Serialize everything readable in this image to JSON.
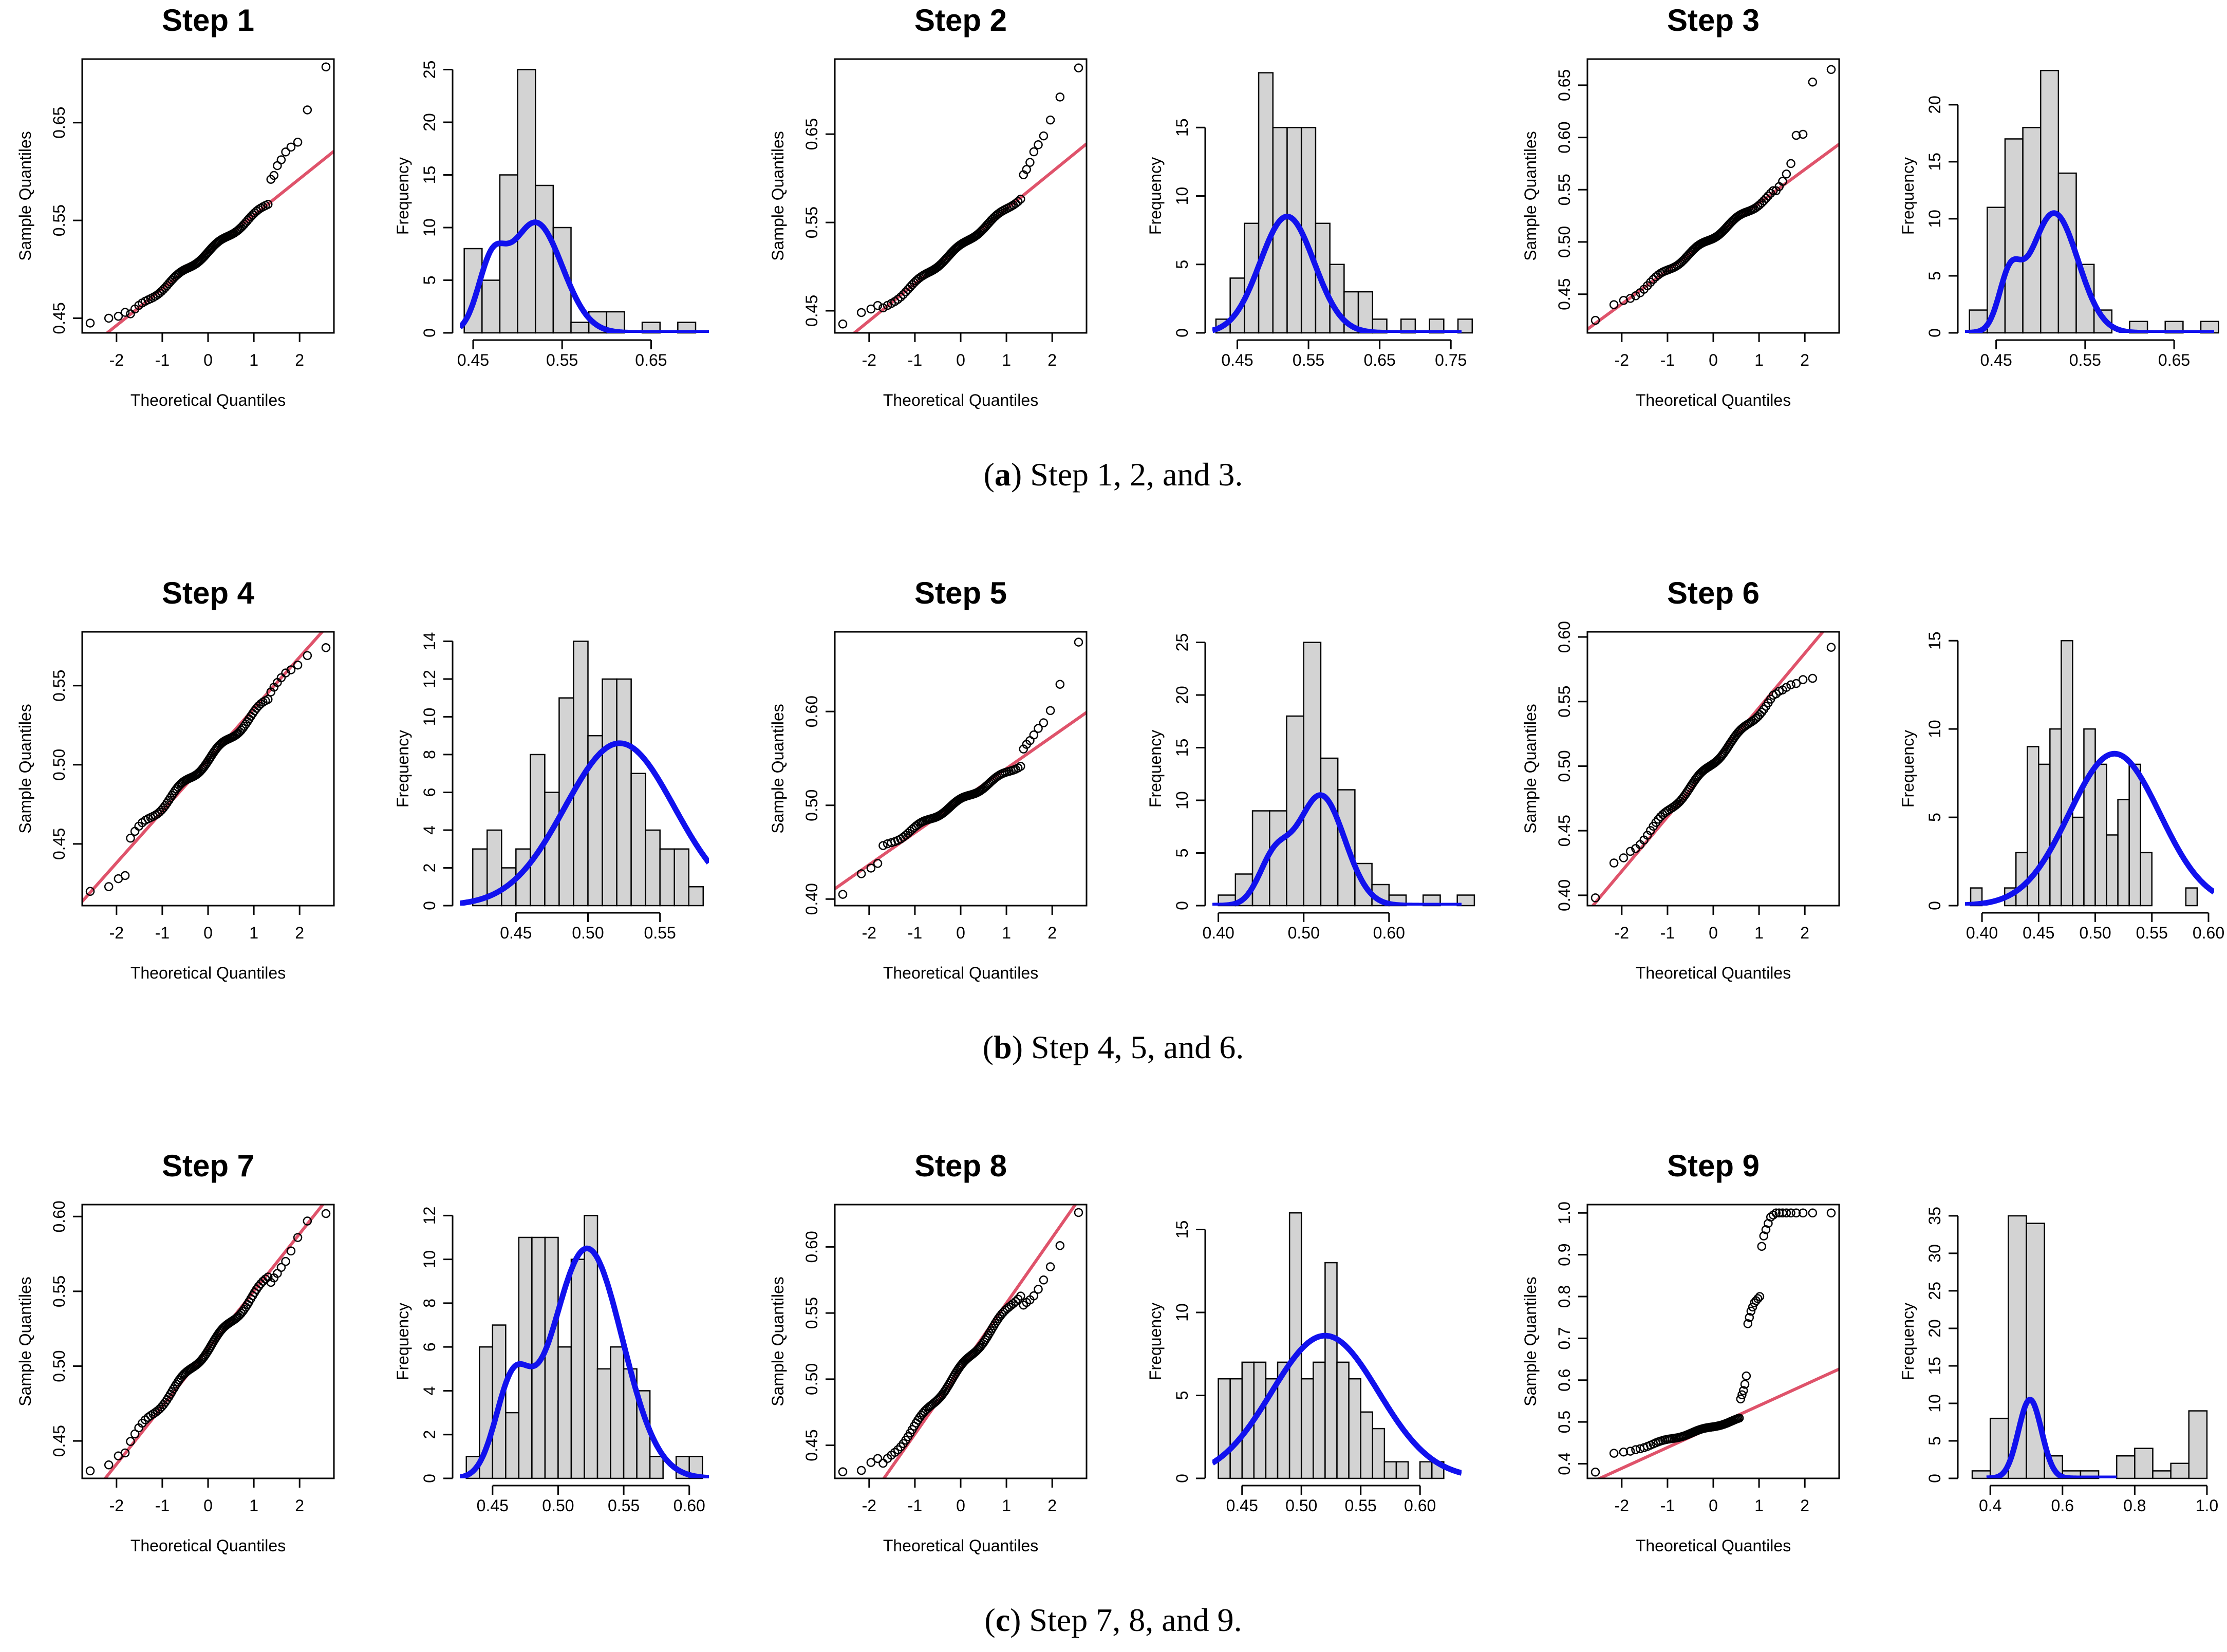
{
  "figure": {
    "captions": [
      {
        "letter": "a",
        "text": " Step 1, 2, and 3."
      },
      {
        "letter": "b",
        "text": " Step 4, 5, and 6."
      },
      {
        "letter": "c",
        "text": " Step 7, 8, and 9."
      }
    ]
  },
  "colors": {
    "ref_line": "#DF536B",
    "density": "#1111EE",
    "bar_fill": "#D3D3D3",
    "axis": "#000000"
  },
  "chart_data": [
    {
      "type": "qq",
      "title": "Step 1",
      "xlabel": "Theoretical Quantiles",
      "ylabel": "Sample Quantiles",
      "xlim": [
        -2.75,
        2.75
      ],
      "ylim": [
        0.435,
        0.715
      ],
      "xticks": [
        -2,
        -1,
        0,
        1,
        2
      ],
      "yticks": [
        0.45,
        0.55,
        0.65
      ],
      "ytick_labels": [
        "0.45",
        "0.55",
        "0.65"
      ],
      "n": 100,
      "line": [
        0.5176,
        0.0375
      ],
      "body_slope": 0.0375,
      "tail_low": [
        0.445,
        0.45,
        0.452,
        0.456
      ],
      "tail_high": [
        0.707,
        0.663,
        0.63,
        0.625,
        0.62,
        0.612,
        0.606,
        0.596,
        0.592
      ]
    },
    {
      "type": "histogram",
      "xlabel": "",
      "ylabel": "Frequency",
      "bin_start": 0.44,
      "bin_width": 0.02,
      "counts": [
        8,
        5,
        15,
        25,
        14,
        10,
        1,
        2,
        2,
        0,
        1,
        0,
        1
      ],
      "xlim": [
        0.435,
        0.715
      ],
      "ylim": [
        0,
        26
      ],
      "xticks": [
        0.45,
        0.55,
        0.65
      ],
      "xtick_labels": [
        "0.45",
        "0.55",
        "0.65"
      ],
      "yticks": [
        0,
        5,
        10,
        15,
        20,
        25
      ],
      "density": {
        "comp": [
          [
            0.8,
            0.52,
            0.03
          ],
          [
            0.2,
            0.47,
            0.015
          ]
        ],
        "peak": 10.5,
        "range": [
          0.435,
          0.715
        ]
      }
    },
    {
      "type": "qq",
      "title": "Step 2",
      "xlabel": "Theoretical Quantiles",
      "ylabel": "Sample Quantiles",
      "xlim": [
        -2.75,
        2.75
      ],
      "ylim": [
        0.425,
        0.735
      ],
      "xticks": [
        -2,
        -1,
        0,
        1,
        2
      ],
      "yticks": [
        0.45,
        0.55,
        0.65
      ],
      "ytick_labels": [
        "0.45",
        "0.55",
        "0.65"
      ],
      "n": 100,
      "line": [
        0.523,
        0.0422
      ],
      "body_slope": 0.0422,
      "tail_low": [
        0.435,
        0.448,
        0.452,
        0.456
      ],
      "tail_high": [
        0.725,
        0.692,
        0.666,
        0.648,
        0.638,
        0.63,
        0.618,
        0.61,
        0.604
      ]
    },
    {
      "type": "histogram",
      "xlabel": "",
      "ylabel": "Frequency",
      "bin_start": 0.42,
      "bin_width": 0.02,
      "counts": [
        1,
        4,
        8,
        19,
        15,
        15,
        15,
        8,
        5,
        3,
        3,
        1,
        0,
        1,
        0,
        1,
        0,
        1
      ],
      "xlim": [
        0.415,
        0.765
      ],
      "ylim": [
        0,
        20
      ],
      "xticks": [
        0.45,
        0.55,
        0.65,
        0.75
      ],
      "xtick_labels": [
        "0.45",
        "0.55",
        "0.65",
        "0.75"
      ],
      "yticks": [
        0,
        5,
        10,
        15
      ],
      "density": {
        "comp": [
          [
            1,
            0.52,
            0.038
          ]
        ],
        "peak": 8.5,
        "range": [
          0.415,
          0.765
        ]
      }
    },
    {
      "type": "qq",
      "title": "Step 3",
      "xlabel": "Theoretical Quantiles",
      "ylabel": "Sample Quantiles",
      "xlim": [
        -2.75,
        2.75
      ],
      "ylim": [
        0.413,
        0.675
      ],
      "xticks": [
        -2,
        -1,
        0,
        1,
        2
      ],
      "yticks": [
        0.45,
        0.5,
        0.55,
        0.6,
        0.65
      ],
      "ytick_labels": [
        "0.45",
        "0.50",
        "0.55",
        "0.60",
        "0.65"
      ],
      "n": 100,
      "line": [
        0.505,
        0.0322
      ],
      "body_slope": 0.0322,
      "tail_low": [
        0.425,
        0.44,
        0.444,
        0.446
      ],
      "tail_high": [
        0.665,
        0.653,
        0.603,
        0.602,
        0.575,
        0.565,
        0.558,
        0.553,
        0.549
      ]
    },
    {
      "type": "histogram",
      "xlabel": "",
      "ylabel": "Frequency",
      "bin_start": 0.42,
      "bin_width": 0.02,
      "counts": [
        2,
        11,
        17,
        18,
        23,
        14,
        6,
        2,
        0,
        1,
        0,
        1,
        0,
        1
      ],
      "xlim": [
        0.415,
        0.695
      ],
      "ylim": [
        0,
        24
      ],
      "xticks": [
        0.45,
        0.55,
        0.65
      ],
      "xtick_labels": [
        "0.45",
        "0.55",
        "0.65"
      ],
      "yticks": [
        0,
        5,
        10,
        15,
        20
      ],
      "density": {
        "comp": [
          [
            0.85,
            0.515,
            0.027
          ],
          [
            0.15,
            0.465,
            0.012
          ]
        ],
        "peak": 10.5,
        "range": [
          0.415,
          0.695
        ]
      }
    },
    {
      "type": "qq",
      "title": "Step 4",
      "xlabel": "Theoretical Quantiles",
      "ylabel": "Sample Quantiles",
      "xlim": [
        -2.75,
        2.75
      ],
      "ylim": [
        0.411,
        0.584
      ],
      "xticks": [
        -2,
        -1,
        0,
        1,
        2
      ],
      "yticks": [
        0.45,
        0.5,
        0.55
      ],
      "ytick_labels": [
        "0.45",
        "0.50",
        "0.55"
      ],
      "n": 100,
      "line": [
        0.503,
        0.0325
      ],
      "body_slope": 0.029,
      "tail_low": [
        0.42,
        0.423,
        0.428,
        0.43
      ],
      "tail_high": [
        0.574,
        0.569,
        0.563,
        0.56,
        0.558,
        0.555,
        0.552,
        0.549,
        0.546
      ]
    },
    {
      "type": "histogram",
      "xlabel": "",
      "ylabel": "Frequency",
      "bin_start": 0.42,
      "bin_width": 0.01,
      "counts": [
        3,
        4,
        2,
        3,
        8,
        6,
        11,
        14,
        9,
        12,
        12,
        7,
        4,
        3,
        3,
        1
      ],
      "xlim": [
        0.411,
        0.584
      ],
      "ylim": [
        0,
        14.5
      ],
      "xticks": [
        0.45,
        0.5,
        0.55
      ],
      "xtick_labels": [
        "0.45",
        "0.50",
        "0.55"
      ],
      "yticks": [
        0,
        2,
        4,
        6,
        8,
        10,
        12,
        14
      ],
      "density": {
        "comp": [
          [
            1,
            0.522,
            0.038
          ]
        ],
        "peak": 8.6,
        "range": [
          0.411,
          0.584
        ]
      }
    },
    {
      "type": "qq",
      "title": "Step 5",
      "xlabel": "Theoretical Quantiles",
      "ylabel": "Sample Quantiles",
      "xlim": [
        -2.75,
        2.75
      ],
      "ylim": [
        0.393,
        0.685
      ],
      "xticks": [
        -2,
        -1,
        0,
        1,
        2
      ],
      "yticks": [
        0.4,
        0.5,
        0.6
      ],
      "ytick_labels": [
        "0.40",
        "0.50",
        "0.60"
      ],
      "n": 100,
      "line": [
        0.505,
        0.0342
      ],
      "body_slope": 0.0295,
      "tail_low": [
        0.405,
        0.427,
        0.433,
        0.438
      ],
      "tail_high": [
        0.674,
        0.629,
        0.601,
        0.588,
        0.582,
        0.575,
        0.569,
        0.565,
        0.56
      ]
    },
    {
      "type": "histogram",
      "xlabel": "",
      "ylabel": "Frequency",
      "bin_start": 0.4,
      "bin_width": 0.02,
      "counts": [
        1,
        3,
        9,
        9,
        18,
        25,
        14,
        11,
        4,
        2,
        1,
        0,
        1,
        0,
        1
      ],
      "xlim": [
        0.393,
        0.685
      ],
      "ylim": [
        0,
        26
      ],
      "xticks": [
        0.4,
        0.5,
        0.6
      ],
      "xtick_labels": [
        "0.40",
        "0.50",
        "0.60"
      ],
      "yticks": [
        0,
        5,
        10,
        15,
        20,
        25
      ],
      "density": {
        "comp": [
          [
            0.8,
            0.52,
            0.028
          ],
          [
            0.2,
            0.465,
            0.018
          ]
        ],
        "peak": 10.5,
        "range": [
          0.393,
          0.685
        ]
      }
    },
    {
      "type": "qq",
      "title": "Step 6",
      "xlabel": "Theoretical Quantiles",
      "ylabel": "Sample Quantiles",
      "xlim": [
        -2.75,
        2.75
      ],
      "ylim": [
        0.392,
        0.604
      ],
      "xticks": [
        -2,
        -1,
        0,
        1,
        2
      ],
      "yticks": [
        0.4,
        0.45,
        0.5,
        0.55,
        0.6
      ],
      "ytick_labels": [
        "0.40",
        "0.45",
        "0.50",
        "0.55",
        "0.60"
      ],
      "n": 100,
      "line": [
        0.503,
        0.0422
      ],
      "body_slope": 0.0385,
      "tail_low": [
        0.398,
        0.425,
        0.429,
        0.434
      ],
      "tail_high": [
        0.592,
        0.568,
        0.567,
        0.564,
        0.563,
        0.561,
        0.559,
        0.558,
        0.556
      ]
    },
    {
      "type": "histogram",
      "xlabel": "",
      "ylabel": "Frequency",
      "bin_start": 0.39,
      "bin_width": 0.01,
      "counts": [
        1,
        0,
        0,
        1,
        3,
        9,
        8,
        10,
        15,
        5,
        10,
        8,
        4,
        6,
        8,
        3,
        0,
        0,
        0,
        1
      ],
      "xlim": [
        0.385,
        0.605
      ],
      "ylim": [
        0,
        15.5
      ],
      "xticks": [
        0.4,
        0.45,
        0.5,
        0.55,
        0.6
      ],
      "xtick_labels": [
        "0.40",
        "0.45",
        "0.50",
        "0.55",
        "0.60"
      ],
      "yticks": [
        0,
        5,
        10,
        15
      ],
      "density": {
        "comp": [
          [
            1,
            0.517,
            0.04
          ]
        ],
        "peak": 8.6,
        "range": [
          0.385,
          0.605
        ]
      }
    },
    {
      "type": "qq",
      "title": "Step 7",
      "xlabel": "Theoretical Quantiles",
      "ylabel": "Sample Quantiles",
      "xlim": [
        -2.75,
        2.75
      ],
      "ylim": [
        0.425,
        0.608
      ],
      "xticks": [
        -2,
        -1,
        0,
        1,
        2
      ],
      "yticks": [
        0.45,
        0.5,
        0.55,
        0.6
      ],
      "ytick_labels": [
        "0.45",
        "0.50",
        "0.55",
        "0.60"
      ],
      "n": 100,
      "line": [
        0.5115,
        0.0385
      ],
      "body_slope": 0.036,
      "tail_low": [
        0.43,
        0.434,
        0.44,
        0.442
      ],
      "tail_high": [
        0.602,
        0.597,
        0.586,
        0.577,
        0.57,
        0.566,
        0.562,
        0.559,
        0.556
      ]
    },
    {
      "type": "histogram",
      "xlabel": "",
      "ylabel": "Frequency",
      "bin_start": 0.43,
      "bin_width": 0.01,
      "counts": [
        1,
        6,
        7,
        3,
        11,
        11,
        11,
        6,
        10,
        12,
        5,
        6,
        5,
        4,
        1,
        0,
        1,
        1
      ],
      "xlim": [
        0.425,
        0.615
      ],
      "ylim": [
        0,
        12.5
      ],
      "xticks": [
        0.45,
        0.5,
        0.55,
        0.6
      ],
      "xtick_labels": [
        "0.45",
        "0.50",
        "0.55",
        "0.60"
      ],
      "yticks": [
        0,
        2,
        4,
        6,
        8,
        10,
        12
      ],
      "density": {
        "comp": [
          [
            0.85,
            0.522,
            0.027
          ],
          [
            0.15,
            0.465,
            0.013
          ]
        ],
        "peak": 10.5,
        "range": [
          0.425,
          0.615
        ]
      }
    },
    {
      "type": "qq",
      "title": "Step 8",
      "xlabel": "Theoretical Quantiles",
      "ylabel": "Sample Quantiles",
      "xlim": [
        -2.75,
        2.75
      ],
      "ylim": [
        0.425,
        0.632
      ],
      "xticks": [
        -2,
        -1,
        0,
        1,
        2
      ],
      "yticks": [
        0.45,
        0.5,
        0.55,
        0.6
      ],
      "ytick_labels": [
        "0.45",
        "0.50",
        "0.55",
        "0.60"
      ],
      "n": 100,
      "line": [
        0.508,
        0.0495
      ],
      "body_slope": 0.0435,
      "tail_low": [
        0.43,
        0.431,
        0.437,
        0.44
      ],
      "tail_high": [
        0.626,
        0.601,
        0.585,
        0.575,
        0.568,
        0.563,
        0.56,
        0.558,
        0.556
      ]
    },
    {
      "type": "histogram",
      "xlabel": "",
      "ylabel": "Frequency",
      "bin_start": 0.43,
      "bin_width": 0.01,
      "counts": [
        6,
        6,
        7,
        7,
        6,
        7,
        16,
        6,
        7,
        13,
        7,
        6,
        4,
        3,
        1,
        1,
        0,
        1,
        1
      ],
      "xlim": [
        0.425,
        0.635
      ],
      "ylim": [
        0,
        16.5
      ],
      "xticks": [
        0.45,
        0.5,
        0.55,
        0.6
      ],
      "xtick_labels": [
        "0.45",
        "0.50",
        "0.55",
        "0.60"
      ],
      "yticks": [
        0,
        5,
        10,
        15
      ],
      "density": {
        "comp": [
          [
            1,
            0.52,
            0.045
          ]
        ],
        "peak": 8.6,
        "range": [
          0.425,
          0.635
        ]
      }
    },
    {
      "type": "qq",
      "title": "Step 9",
      "xlabel": "Theoretical Quantiles",
      "ylabel": "Sample Quantiles",
      "xlim": [
        -2.75,
        2.75
      ],
      "ylim": [
        0.365,
        1.02
      ],
      "xticks": [
        -2,
        -1,
        0,
        1,
        2
      ],
      "yticks": [
        0.4,
        0.5,
        0.6,
        0.7,
        0.8,
        0.9,
        1.0
      ],
      "ytick_labels": [
        "0.4",
        "0.5",
        "0.6",
        "0.7",
        "0.8",
        "0.9",
        "1.0"
      ],
      "n": 100,
      "line": [
        0.489,
        0.05
      ],
      "body_slope": 0.032,
      "tail_low": [
        0.38,
        0.425,
        0.428,
        0.43
      ],
      "tail_high": [
        1.0,
        1.0,
        1.0,
        1.0,
        1.0,
        1.0,
        1.0,
        1.0,
        1.0,
        0.995,
        0.99,
        0.975,
        0.96,
        0.945,
        0.92,
        0.8,
        0.795,
        0.79,
        0.785,
        0.775,
        0.765,
        0.75,
        0.735,
        0.61,
        0.59,
        0.575,
        0.565,
        0.555
      ]
    },
    {
      "type": "histogram",
      "xlabel": "",
      "ylabel": "Frequency",
      "bin_start": 0.35,
      "bin_width": 0.05,
      "counts": [
        1,
        8,
        35,
        34,
        3,
        1,
        1,
        0,
        3,
        4,
        1,
        2,
        9
      ],
      "xlim": [
        0.33,
        1.02
      ],
      "ylim": [
        0,
        36.5
      ],
      "xticks": [
        0.4,
        0.6,
        0.8,
        1.0
      ],
      "xtick_labels": [
        "0.4",
        "0.6",
        "0.8",
        "1.0"
      ],
      "yticks": [
        0,
        5,
        10,
        15,
        20,
        25,
        30,
        35
      ],
      "density": {
        "comp": [
          [
            1,
            0.51,
            0.032
          ]
        ],
        "peak": 10.5,
        "range": [
          0.39,
          0.75
        ]
      }
    }
  ]
}
